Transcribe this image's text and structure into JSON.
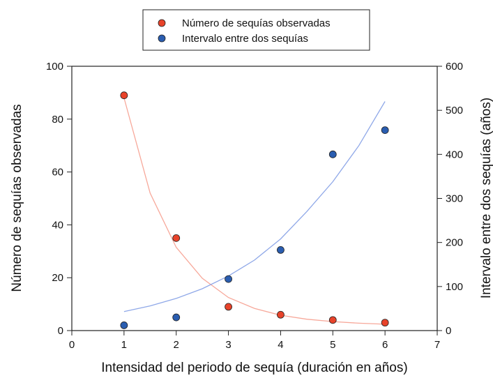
{
  "chart_data": {
    "type": "scatter",
    "xlabel": "Intensidad del periodo de sequía (duración en años)",
    "ylabel_left": "Número de sequías observadas",
    "ylabel_right": "Intervalo entre dos sequías (años)",
    "xlim": [
      0,
      7
    ],
    "xticks": [
      0,
      1,
      2,
      3,
      4,
      5,
      6,
      7
    ],
    "ylim_left": [
      0,
      100
    ],
    "yticks_left": [
      0,
      20,
      40,
      60,
      80,
      100
    ],
    "ylim_right": [
      0,
      600
    ],
    "yticks_right": [
      0,
      100,
      200,
      300,
      400,
      500,
      600
    ],
    "legend_position": "top-center",
    "grid": false,
    "series": [
      {
        "name": "Número de sequías observadas",
        "axis": "left",
        "color": "#e8432a",
        "x": [
          1,
          2,
          3,
          4,
          5,
          6
        ],
        "y": [
          89,
          35,
          9,
          6,
          4,
          3
        ],
        "fit_curve": {
          "color": "#f7a89a",
          "x": [
            1,
            1.5,
            2,
            2.5,
            3,
            3.5,
            4,
            4.5,
            5,
            5.5,
            6
          ],
          "y": [
            88,
            52,
            31.5,
            19.8,
            12.5,
            8.4,
            5.8,
            4.3,
            3.4,
            2.8,
            2.4
          ]
        }
      },
      {
        "name": "Intervalo entre dos sequías",
        "axis": "right",
        "color": "#2a5db0",
        "x": [
          1,
          2,
          3,
          4,
          5,
          6
        ],
        "y": [
          12,
          30,
          117,
          183,
          400,
          455
        ],
        "fit_curve": {
          "color": "#8fa8e8",
          "x": [
            1,
            1.5,
            2,
            2.5,
            3,
            3.5,
            4,
            4.5,
            5,
            5.5,
            6
          ],
          "y": [
            43,
            56,
            73,
            95,
            124,
            160,
            208,
            270,
            338,
            420,
            520
          ]
        }
      }
    ]
  }
}
